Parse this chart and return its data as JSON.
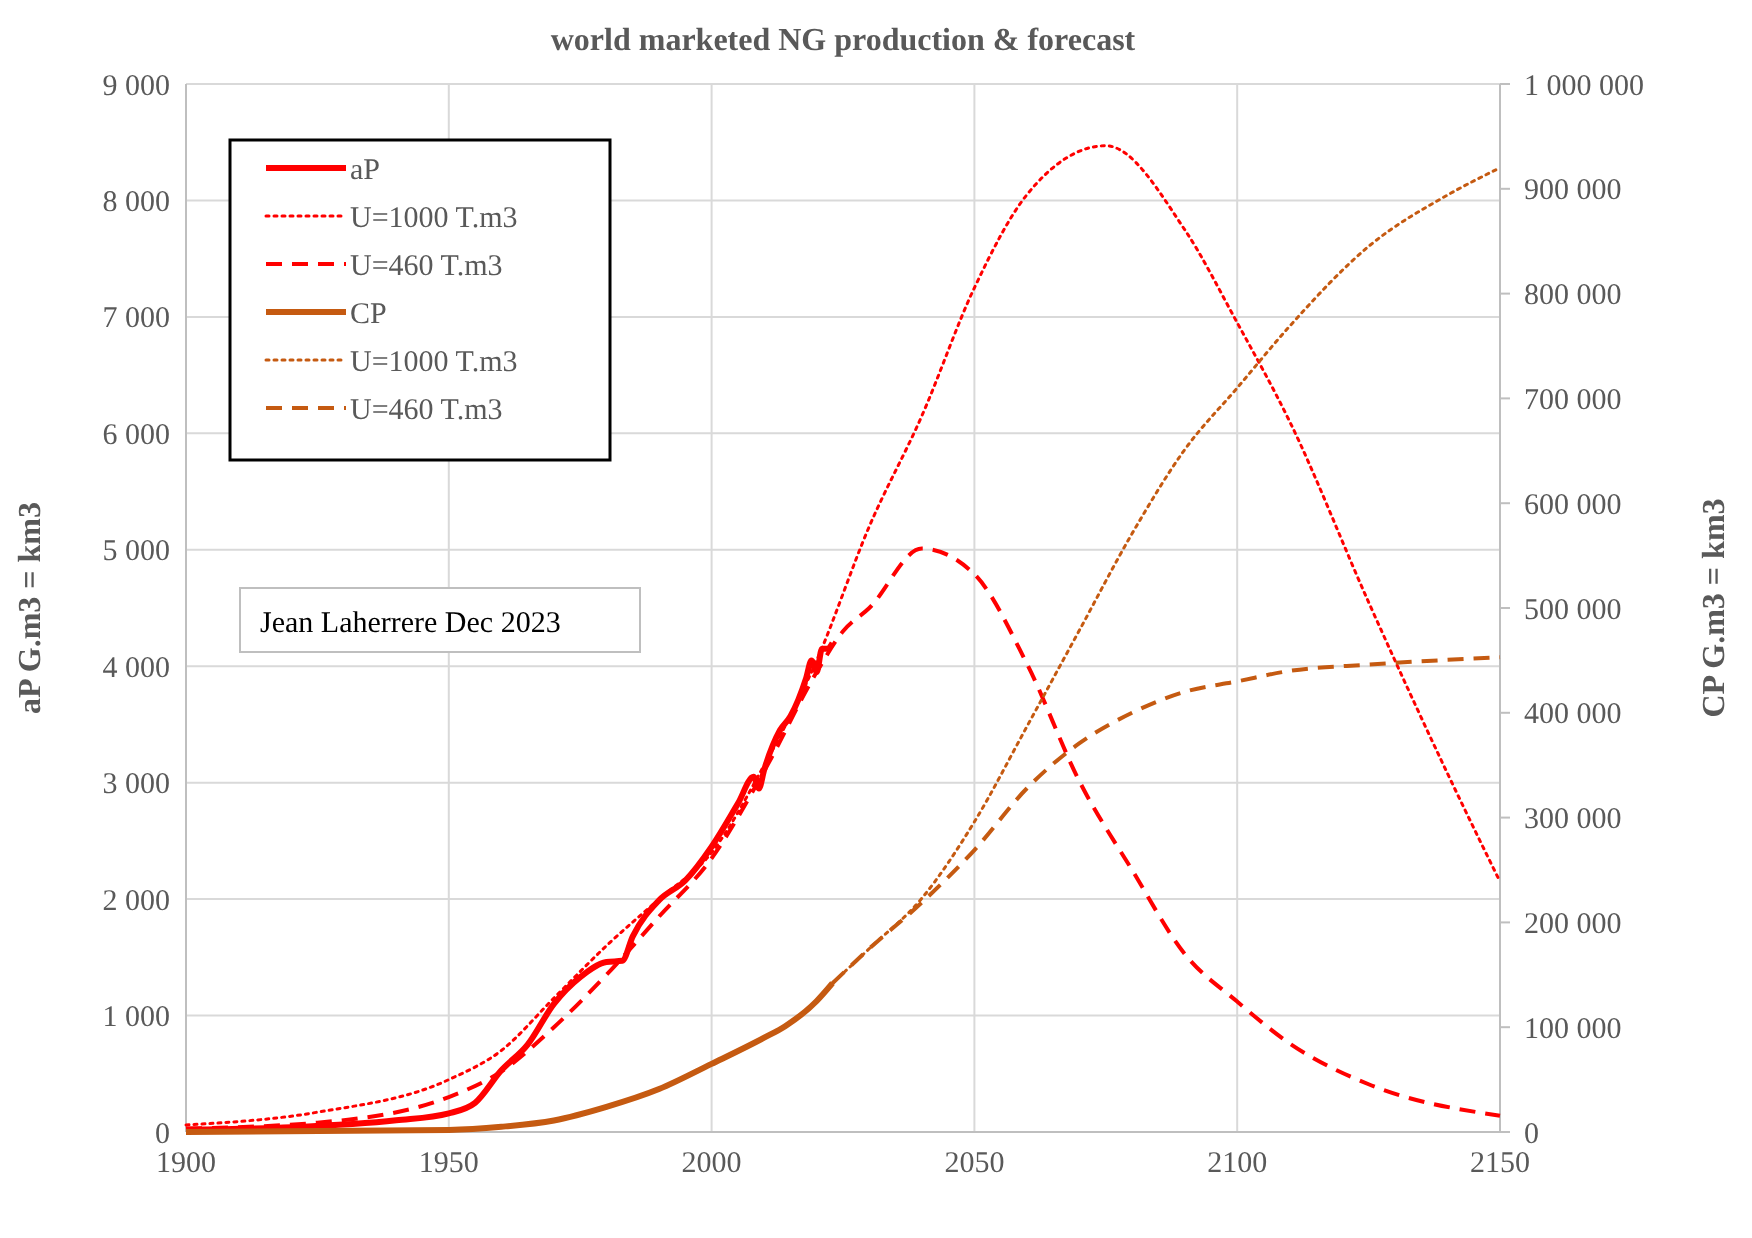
{
  "chart_data": {
    "type": "line",
    "title": "world marketed NG production & forecast",
    "ylabel": "aP G.m3 = km3",
    "y2label": "CP G.m3 = km3",
    "xlim": [
      1900,
      2150
    ],
    "xticks": [
      1900,
      1950,
      2000,
      2050,
      2100,
      2150
    ],
    "ylim": [
      0,
      9000
    ],
    "yticks": [
      0,
      {
        "value": 1000,
        "label": "1 000"
      },
      {
        "value": 2000,
        "label": "2 000"
      },
      {
        "value": 3000,
        "label": "3 000"
      },
      {
        "value": 4000,
        "label": "4 000"
      },
      {
        "value": 5000,
        "label": "5 000"
      },
      {
        "value": 6000,
        "label": "6 000"
      },
      {
        "value": 7000,
        "label": "7 000"
      },
      {
        "value": 8000,
        "label": "8 000"
      },
      {
        "value": 9000,
        "label": "9 000"
      }
    ],
    "y2lim": [
      0,
      1000000
    ],
    "y2ticks": [
      0,
      {
        "value": 100000,
        "label": "100 000"
      },
      {
        "value": 200000,
        "label": "200 000"
      },
      {
        "value": 300000,
        "label": "300 000"
      },
      {
        "value": 400000,
        "label": "400 000"
      },
      {
        "value": 500000,
        "label": "500 000"
      },
      {
        "value": 600000,
        "label": "600 000"
      },
      {
        "value": 700000,
        "label": "700 000"
      },
      {
        "value": 800000,
        "label": "800 000"
      },
      {
        "value": 900000,
        "label": "900 000"
      },
      {
        "value": 1000000,
        "label": "1 000 000"
      }
    ],
    "grid": true,
    "legend": "top left",
    "annotations": [
      "Jean Laherrere Dec 2023"
    ],
    "series": [
      {
        "name": "aP",
        "color": "#ff0000",
        "line_style": "solid",
        "x": [
          1900,
          1920,
          1940,
          1950,
          1955,
          1960,
          1965,
          1970,
          1975,
          1980,
          1983,
          1985,
          1990,
          1995,
          2000,
          2005,
          2008,
          2009,
          2010,
          2013,
          2015,
          2018,
          2019,
          2020,
          2021,
          2022,
          2023
        ],
        "values": [
          20,
          40,
          100,
          160,
          250,
          530,
          750,
          1100,
          1330,
          1460,
          1470,
          1680,
          1990,
          2160,
          2450,
          2820,
          3050,
          2950,
          3110,
          3450,
          3570,
          3900,
          4050,
          3950,
          4150,
          4150,
          4200
        ]
      },
      {
        "name": "U=1000 T.m3",
        "color": "#ff0000",
        "line_style": "dotted",
        "x": [
          1900,
          1925,
          1950,
          1960,
          1970,
          1980,
          1990,
          2000,
          2010,
          2020,
          2030,
          2040,
          2050,
          2060,
          2075,
          2090,
          2100,
          2110,
          2125,
          2140,
          2150
        ],
        "values": [
          60,
          170,
          450,
          700,
          1150,
          1600,
          2000,
          2400,
          3150,
          4050,
          5200,
          6150,
          7250,
          8050,
          8470,
          7750,
          6950,
          6100,
          4550,
          3080,
          2150
        ]
      },
      {
        "name": "U=460 T.m3",
        "color": "#ff0000",
        "line_style": "dashed",
        "x": [
          1900,
          1925,
          1950,
          1960,
          1970,
          1980,
          1990,
          2000,
          2010,
          2020,
          2025,
          2030,
          2040,
          2050,
          2060,
          2070,
          2080,
          2090,
          2100,
          2110,
          2125,
          2150
        ],
        "values": [
          30,
          80,
          300,
          520,
          900,
          1350,
          1850,
          2350,
          3100,
          3950,
          4300,
          4500,
          5010,
          4790,
          4020,
          3010,
          2250,
          1530,
          1120,
          760,
          410,
          140
        ]
      },
      {
        "name": "CP",
        "color": "#c55a11",
        "line_style": "solid",
        "axis": "y2",
        "x": [
          1900,
          1950,
          1960,
          1970,
          1980,
          1990,
          2000,
          2010,
          2014,
          2020,
          2023
        ],
        "values": [
          0,
          2000,
          5000,
          11000,
          24000,
          41000,
          65000,
          90000,
          101000,
          125000,
          142000
        ]
      },
      {
        "name": "U=1000 T.m3",
        "color": "#c55a11",
        "line_style": "dotted",
        "axis": "y2",
        "x": [
          2023,
          2030,
          2040,
          2050,
          2060,
          2070,
          2080,
          2090,
          2100,
          2110,
          2125,
          2140,
          2150
        ],
        "values": [
          142000,
          175000,
          223000,
          296000,
          387000,
          479000,
          571000,
          651000,
          710000,
          769000,
          845000,
          894000,
          920000
        ]
      },
      {
        "name": "U=460 T.m3",
        "color": "#c55a11",
        "line_style": "dashed",
        "axis": "y2",
        "x": [
          2023,
          2030,
          2040,
          2050,
          2060,
          2070,
          2080,
          2090,
          2100,
          2110,
          2125,
          2150
        ],
        "values": [
          142000,
          175000,
          219000,
          269000,
          328000,
          371000,
          400000,
          420000,
          430000,
          440000,
          446000,
          453000
        ]
      }
    ]
  }
}
